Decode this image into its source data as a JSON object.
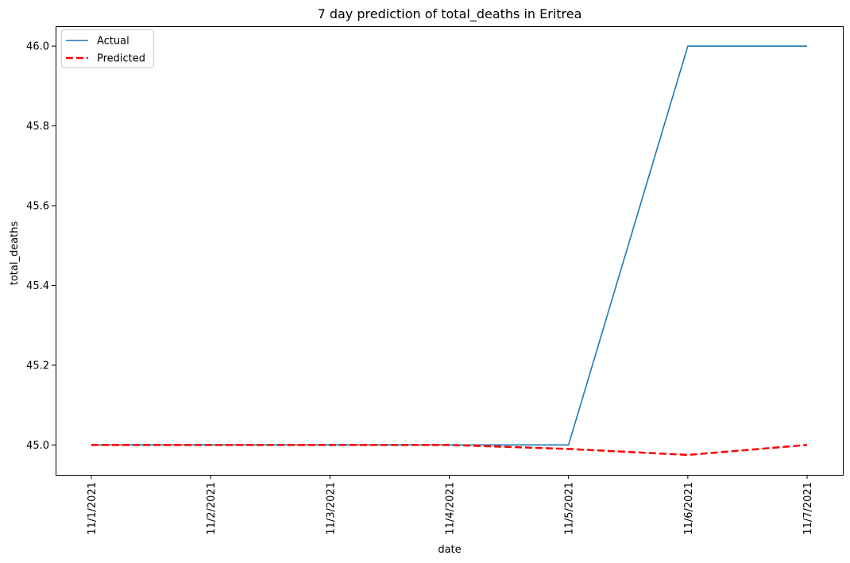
{
  "chart_data": {
    "type": "line",
    "title": "7 day prediction of total_deaths in Eritrea",
    "xlabel": "date",
    "ylabel": "total_deaths",
    "categories": [
      "11/1/2021",
      "11/2/2021",
      "11/3/2021",
      "11/4/2021",
      "11/5/2021",
      "11/6/2021",
      "11/7/2021"
    ],
    "ylim": [
      44.925,
      46.05
    ],
    "yticks": [
      "45.0",
      "45.2",
      "45.4",
      "45.6",
      "45.8",
      "46.0"
    ],
    "grid": false,
    "legend_position": "top-left",
    "series": [
      {
        "name": "Actual",
        "values": [
          45.0,
          45.0,
          45.0,
          45.0,
          45.0,
          46.0,
          46.0
        ],
        "color": "#1f77b4",
        "style": "solid"
      },
      {
        "name": "Predicted",
        "values": [
          45.0,
          45.0,
          45.0,
          45.0,
          44.99,
          44.975,
          45.0
        ],
        "color": "#ff0000",
        "style": "dashed"
      }
    ]
  }
}
